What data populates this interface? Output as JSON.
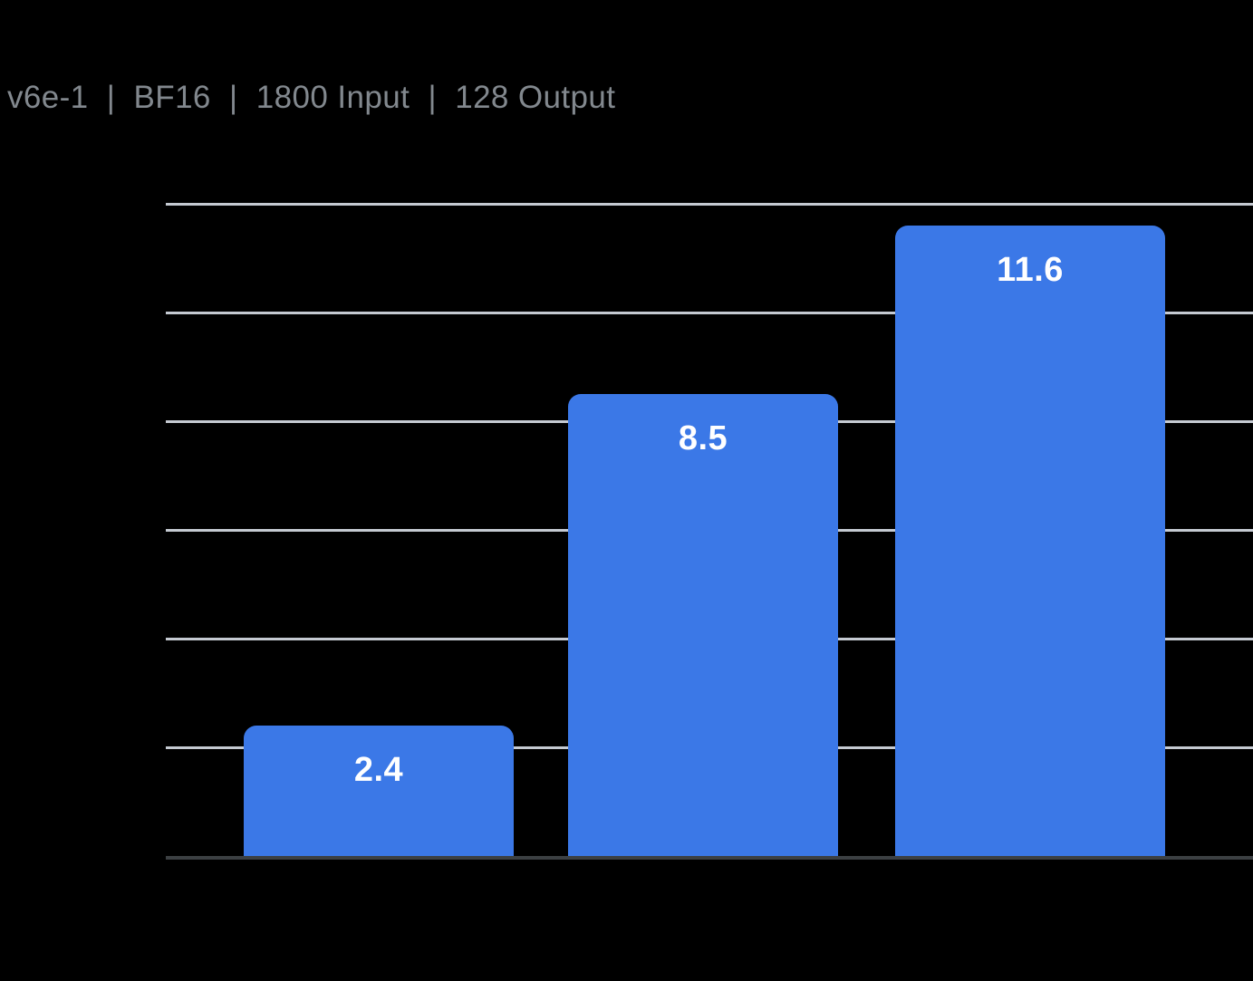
{
  "header": {
    "title": "v6e-1  |  BF16  |  1800 Input  |  128 Output"
  },
  "colors": {
    "background": "#000000",
    "bar": "#3B78E7",
    "grid": "#C5CAD2",
    "axis": "#3C4043",
    "title_text": "#82888E",
    "value_label": "#FFFFFF"
  },
  "chart_data": {
    "type": "bar",
    "title": "v6e-1  |  BF16  |  1800 Input  |  128 Output",
    "categories": [
      "",
      "",
      ""
    ],
    "values": [
      2.4,
      8.5,
      11.6
    ],
    "value_labels": [
      "2.4",
      "8.5",
      "11.6"
    ],
    "xlabel": "",
    "ylabel": "",
    "ylim": [
      0,
      12
    ],
    "gridline_values": [
      2,
      4,
      6,
      8,
      10,
      12
    ],
    "grid": true,
    "legend_visible": false,
    "x_tick_labels_visible": false,
    "y_tick_labels_visible": false,
    "value_labels_position": "inside-top"
  }
}
